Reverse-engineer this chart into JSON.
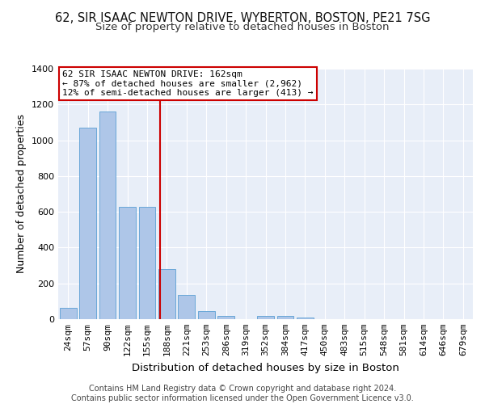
{
  "title1": "62, SIR ISAAC NEWTON DRIVE, WYBERTON, BOSTON, PE21 7SG",
  "title2": "Size of property relative to detached houses in Boston",
  "xlabel": "Distribution of detached houses by size in Boston",
  "ylabel": "Number of detached properties",
  "footer1": "Contains HM Land Registry data © Crown copyright and database right 2024.",
  "footer2": "Contains public sector information licensed under the Open Government Licence v3.0.",
  "annotation_line1": "62 SIR ISAAC NEWTON DRIVE: 162sqm",
  "annotation_line2": "← 87% of detached houses are smaller (2,962)",
  "annotation_line3": "12% of semi-detached houses are larger (413) →",
  "bar_labels": [
    "24sqm",
    "57sqm",
    "90sqm",
    "122sqm",
    "155sqm",
    "188sqm",
    "221sqm",
    "253sqm",
    "286sqm",
    "319sqm",
    "352sqm",
    "384sqm",
    "417sqm",
    "450sqm",
    "483sqm",
    "515sqm",
    "548sqm",
    "581sqm",
    "614sqm",
    "646sqm",
    "679sqm"
  ],
  "bar_values": [
    65,
    1070,
    1160,
    630,
    630,
    280,
    135,
    45,
    20,
    0,
    20,
    20,
    10,
    0,
    0,
    0,
    0,
    0,
    0,
    0,
    0
  ],
  "bar_color": "#aec6e8",
  "bar_edge_color": "#5a9fd4",
  "red_line_x": 4.65,
  "red_line_color": "#cc0000",
  "annotation_box_color": "#cc0000",
  "ylim": [
    0,
    1400
  ],
  "yticks": [
    0,
    200,
    400,
    600,
    800,
    1000,
    1200,
    1400
  ],
  "bg_color": "#e8eef8",
  "grid_color": "#ffffff",
  "title1_fontsize": 10.5,
  "title2_fontsize": 9.5,
  "axis_label_fontsize": 9,
  "tick_fontsize": 8,
  "footer_fontsize": 7.0
}
